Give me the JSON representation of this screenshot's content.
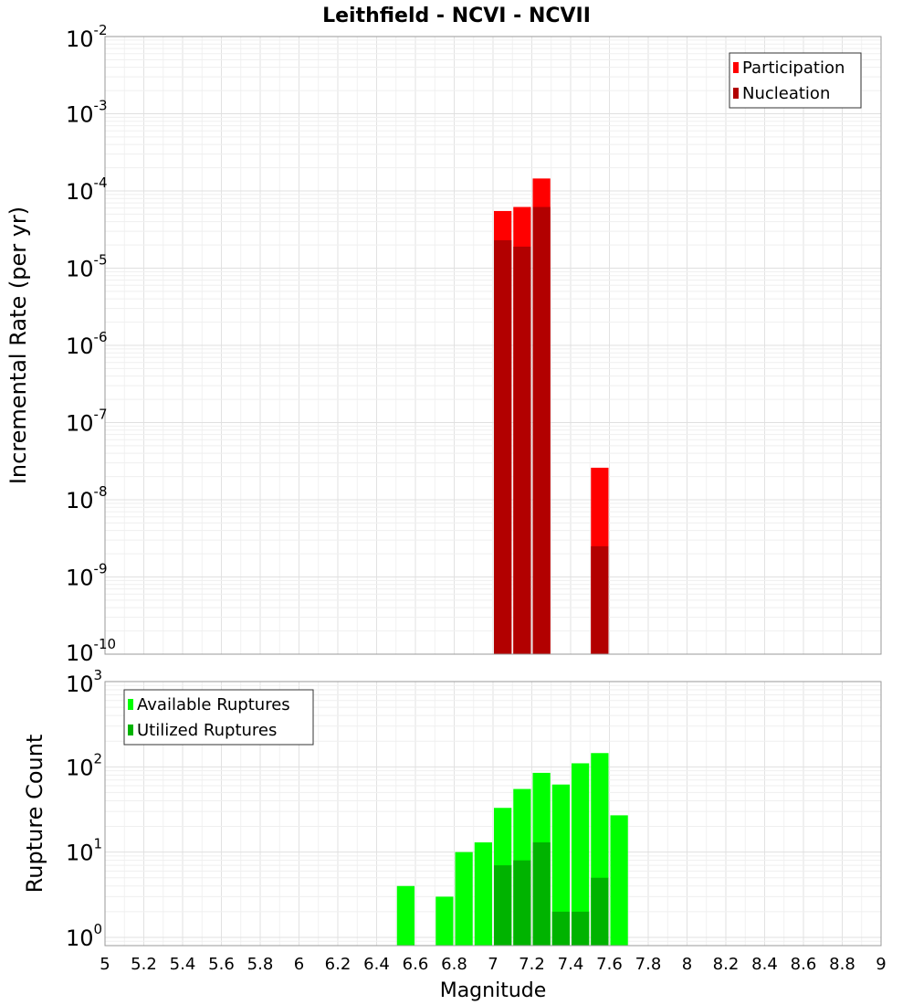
{
  "title": "Leithfield - NCVI - NCVII",
  "x_axis": {
    "label": "Magnitude",
    "tick_labels": [
      "5",
      "5.2",
      "5.4",
      "5.6",
      "5.8",
      "6",
      "6.2",
      "6.4",
      "6.6",
      "6.8",
      "7",
      "7.2",
      "7.4",
      "7.6",
      "7.8",
      "8",
      "8.2",
      "8.4",
      "8.6",
      "8.8",
      "9"
    ]
  },
  "top_panel": {
    "ylabel": "Incremental Rate (per yr)",
    "y_tick_labels": [
      {
        "base": "10",
        "exp": "-2"
      },
      {
        "base": "10",
        "exp": "-3"
      },
      {
        "base": "10",
        "exp": "-4"
      },
      {
        "base": "10",
        "exp": "-5"
      },
      {
        "base": "10",
        "exp": "-6"
      },
      {
        "base": "10",
        "exp": "-7"
      },
      {
        "base": "10",
        "exp": "-8"
      },
      {
        "base": "10",
        "exp": "-9"
      },
      {
        "base": "10",
        "exp": "-10"
      }
    ],
    "legend": [
      {
        "label": "Participation",
        "color": "#ff0000"
      },
      {
        "label": "Nucleation",
        "color": "#b20000"
      }
    ]
  },
  "bottom_panel": {
    "ylabel": "Rupture Count",
    "y_tick_labels": [
      {
        "base": "10",
        "exp": "3"
      },
      {
        "base": "10",
        "exp": "2"
      },
      {
        "base": "10",
        "exp": "1"
      },
      {
        "base": "10",
        "exp": "0"
      }
    ],
    "legend": [
      {
        "label": "Available Ruptures",
        "color": "#00ff00"
      },
      {
        "label": "Utilized Ruptures",
        "color": "#00b300"
      }
    ]
  },
  "chart_data": [
    {
      "type": "bar",
      "xlabel": "Magnitude",
      "ylabel": "Incremental Rate (per yr)",
      "title": "Leithfield - NCVI - NCVII",
      "y_scale": "log",
      "xlim": [
        5,
        9
      ],
      "ylim": [
        1e-10,
        0.01
      ],
      "bar_width": 0.1,
      "legend_position": "top-right",
      "grid": true,
      "series": [
        {
          "name": "Participation",
          "color": "#ff0000",
          "x": [
            7.05,
            7.15,
            7.25,
            7.55
          ],
          "values": [
            5.5e-05,
            6.2e-05,
            0.000145,
            2.6e-08
          ]
        },
        {
          "name": "Nucleation",
          "color": "#b20000",
          "x": [
            7.05,
            7.15,
            7.25,
            7.55
          ],
          "values": [
            2.3e-05,
            1.9e-05,
            6.2e-05,
            2.5e-09
          ]
        }
      ]
    },
    {
      "type": "bar",
      "xlabel": "Magnitude",
      "ylabel": "Rupture Count",
      "y_scale": "log",
      "xlim": [
        5,
        9
      ],
      "ylim": [
        0.8,
        1000
      ],
      "bar_width": 0.1,
      "legend_position": "top-left",
      "grid": true,
      "series": [
        {
          "name": "Available Ruptures",
          "color": "#00ff00",
          "x": [
            6.55,
            6.75,
            6.85,
            6.95,
            7.05,
            7.15,
            7.25,
            7.35,
            7.45,
            7.55,
            7.65
          ],
          "values": [
            4,
            3,
            10,
            13,
            33,
            55,
            85,
            62,
            110,
            145,
            27
          ]
        },
        {
          "name": "Utilized Ruptures",
          "color": "#00b300",
          "x": [
            7.05,
            7.15,
            7.25,
            7.35,
            7.45,
            7.55
          ],
          "values": [
            7,
            8,
            13,
            2,
            2,
            5
          ]
        }
      ]
    }
  ]
}
